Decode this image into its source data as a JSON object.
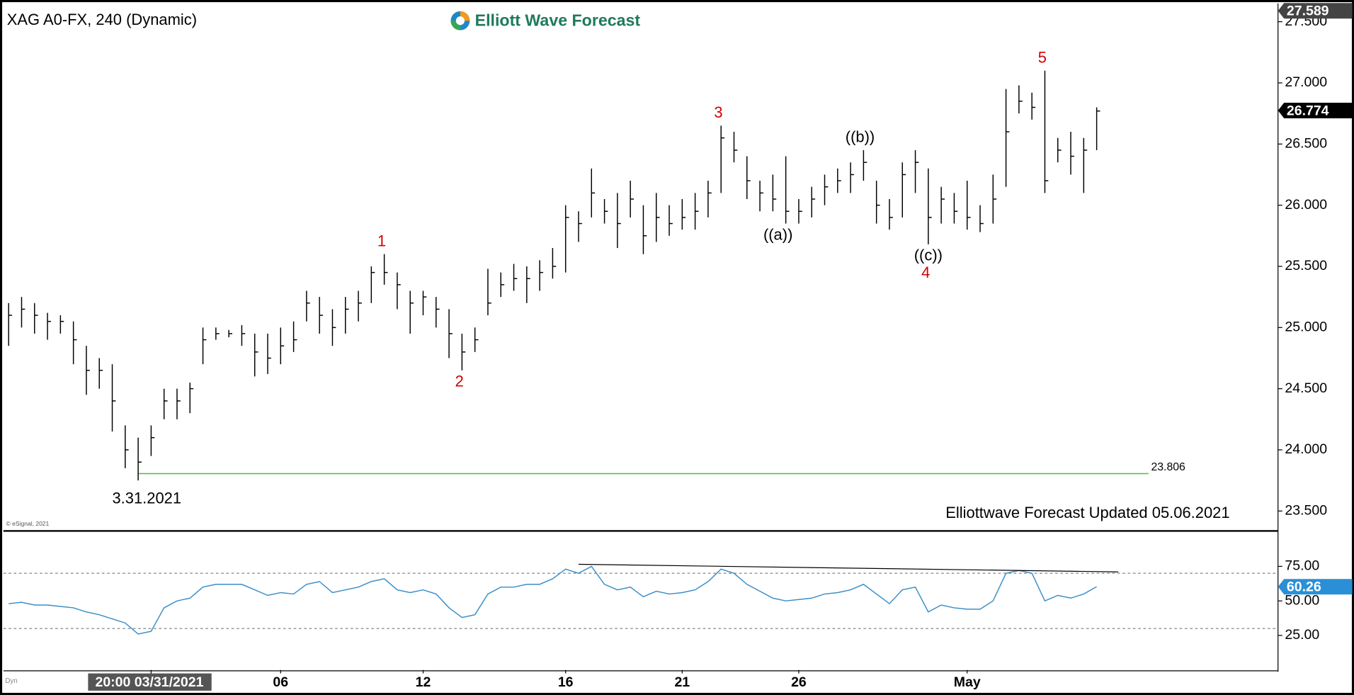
{
  "chart_data": {
    "type": "ohlc",
    "title": "XAG A0-FX, 240 (Dynamic)",
    "brand": "Elliott Wave Forecast",
    "note": "Elliottwave Forecast Updated 05.06.2021",
    "copyright": "© eSignal, 2021",
    "corner_label": "Dyn",
    "color": "#000000",
    "categories": [
      null,
      null,
      null,
      null,
      null,
      null,
      null,
      null,
      null,
      null,
      null,
      "20:00 03/31/2021",
      null,
      null,
      null,
      null,
      null,
      null,
      null,
      null,
      null,
      "06",
      null,
      null,
      null,
      null,
      null,
      null,
      null,
      null,
      null,
      null,
      "12",
      null,
      null,
      null,
      null,
      null,
      null,
      null,
      null,
      null,
      null,
      "16",
      null,
      null,
      null,
      null,
      null,
      null,
      null,
      null,
      "21",
      null,
      null,
      null,
      null,
      null,
      null,
      null,
      null,
      "26",
      null,
      null,
      null,
      null,
      null,
      null,
      null,
      null,
      null,
      null,
      null,
      null,
      "May",
      null,
      null,
      null,
      null,
      null,
      null,
      null,
      null,
      null,
      null
    ],
    "close": [
      25.1,
      25.15,
      25.1,
      25.05,
      25.05,
      24.9,
      24.65,
      24.65,
      24.4,
      24.0,
      23.9,
      24.1,
      24.4,
      24.4,
      24.5,
      24.9,
      24.95,
      24.95,
      24.95,
      24.8,
      24.75,
      24.85,
      24.9,
      25.2,
      25.1,
      25.0,
      25.15,
      25.2,
      25.45,
      25.45,
      25.35,
      25.2,
      25.25,
      25.15,
      24.95,
      24.8,
      24.9,
      25.2,
      25.35,
      25.4,
      25.4,
      25.45,
      25.5,
      25.9,
      25.85,
      26.1,
      25.95,
      25.85,
      26.05,
      25.75,
      25.9,
      25.85,
      25.9,
      25.95,
      26.1,
      26.55,
      26.45,
      26.2,
      26.1,
      26.05,
      25.95,
      25.95,
      26.05,
      26.15,
      26.2,
      26.25,
      26.35,
      26.0,
      25.9,
      26.25,
      26.35,
      25.9,
      26.05,
      25.95,
      25.9,
      25.85,
      26.05,
      26.6,
      26.85,
      26.8,
      26.2,
      26.45,
      26.4,
      26.45,
      26.77
    ],
    "high": [
      25.2,
      25.25,
      25.2,
      25.12,
      25.1,
      25.05,
      24.85,
      24.75,
      24.7,
      24.2,
      24.1,
      24.2,
      24.5,
      24.5,
      24.55,
      25.0,
      25.0,
      24.98,
      25.02,
      24.95,
      24.95,
      25.0,
      25.05,
      25.3,
      25.25,
      25.15,
      25.25,
      25.3,
      25.5,
      25.6,
      25.45,
      25.3,
      25.3,
      25.25,
      25.15,
      24.95,
      25.0,
      25.48,
      25.45,
      25.52,
      25.5,
      25.55,
      25.65,
      26.0,
      25.95,
      26.3,
      26.05,
      26.1,
      26.2,
      26.0,
      26.1,
      26.0,
      26.05,
      26.1,
      26.2,
      26.65,
      26.6,
      26.4,
      26.2,
      26.25,
      26.4,
      26.05,
      26.15,
      26.25,
      26.3,
      26.35,
      26.45,
      26.2,
      26.05,
      26.35,
      26.45,
      26.3,
      26.15,
      26.1,
      26.2,
      26.0,
      26.25,
      26.95,
      26.98,
      26.92,
      27.1,
      26.55,
      26.6,
      26.55,
      26.8
    ],
    "low": [
      24.85,
      25.0,
      24.95,
      24.9,
      24.95,
      24.7,
      24.45,
      24.5,
      24.15,
      23.85,
      23.75,
      23.95,
      24.25,
      24.25,
      24.3,
      24.7,
      24.9,
      24.92,
      24.85,
      24.6,
      24.62,
      24.7,
      24.8,
      25.05,
      24.95,
      24.85,
      24.95,
      25.05,
      25.2,
      25.35,
      25.15,
      24.95,
      25.1,
      25.0,
      24.75,
      24.65,
      24.8,
      25.1,
      25.25,
      25.3,
      25.2,
      25.3,
      25.4,
      25.45,
      25.7,
      25.9,
      25.85,
      25.65,
      25.9,
      25.6,
      25.7,
      25.75,
      25.8,
      25.8,
      25.9,
      26.1,
      26.35,
      26.05,
      25.95,
      25.95,
      25.85,
      25.85,
      25.9,
      26.0,
      26.1,
      26.1,
      26.2,
      25.85,
      25.8,
      25.9,
      26.1,
      25.68,
      25.85,
      25.85,
      25.8,
      25.78,
      25.85,
      26.15,
      26.75,
      26.7,
      26.1,
      26.35,
      26.25,
      26.1,
      26.45
    ],
    "ylim": [
      23.344,
      27.621
    ],
    "yticks": [
      {
        "value": 23.5,
        "label": "23.500"
      },
      {
        "value": 24.0,
        "label": "24.000"
      },
      {
        "value": 24.5,
        "label": "24.500"
      },
      {
        "value": 25.0,
        "label": "25.000"
      },
      {
        "value": 25.5,
        "label": "25.500"
      },
      {
        "value": 26.0,
        "label": "26.000"
      },
      {
        "value": 26.5,
        "label": "26.500"
      },
      {
        "value": 27.0,
        "label": "27.000"
      },
      {
        "value": 27.5,
        "label": "27.500"
      }
    ],
    "last_price": 26.774,
    "top_price": 27.589,
    "support": 23.806,
    "support_color": "#33cc33",
    "low_date": "3.31.2021",
    "wave_labels": [
      "1",
      "2",
      "3",
      "4",
      "5"
    ],
    "corrective_labels": [
      "((a))",
      "((b))",
      "((c))"
    ],
    "wave_color": "#d40000",
    "rsi": {
      "values": [
        48,
        49,
        47,
        47,
        46,
        45,
        42,
        40,
        37,
        34,
        26,
        28,
        45,
        50,
        52,
        60,
        62,
        62,
        62,
        58,
        54,
        56,
        55,
        62,
        64,
        56,
        58,
        60,
        64,
        66,
        58,
        56,
        58,
        55,
        45,
        38,
        40,
        55,
        60,
        60,
        62,
        62,
        66,
        73,
        70,
        75,
        62,
        58,
        60,
        53,
        57,
        55,
        56,
        58,
        64,
        73,
        70,
        62,
        57,
        52,
        50,
        51,
        52,
        55,
        56,
        58,
        62,
        55,
        48,
        58,
        60,
        42,
        47,
        45,
        44,
        44,
        50,
        70,
        72,
        70,
        50,
        54,
        52,
        55,
        60.26
      ],
      "color": "#3a8ec8",
      "ylim": [
        0,
        100
      ],
      "yticks": [
        {
          "value": 25,
          "label": "25.00"
        },
        {
          "value": 50,
          "label": "50.00"
        },
        {
          "value": 75,
          "label": "75.00"
        }
      ],
      "levels": [
        30,
        70
      ],
      "trendline": [
        76.5,
        71
      ]
    }
  }
}
